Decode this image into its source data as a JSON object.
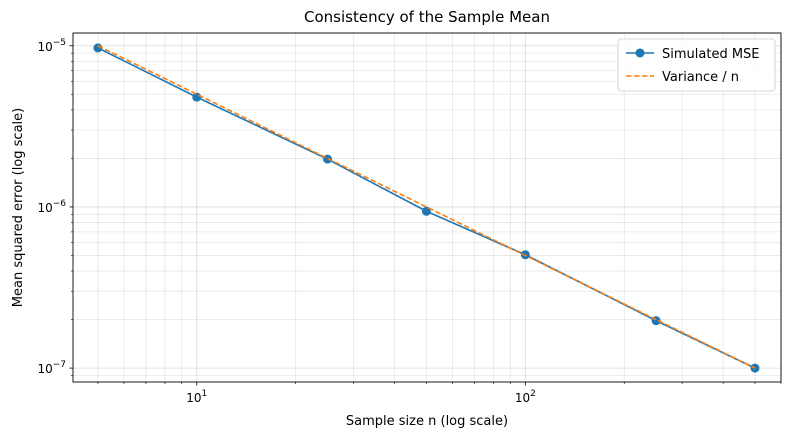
{
  "chart_data": {
    "type": "line",
    "title": "Consistency of the Sample Mean",
    "xlabel": "Sample size n (log scale)",
    "ylabel": "Mean squared error (log scale)",
    "xscale": "log",
    "yscale": "log",
    "xlim": [
      4.2,
      600
    ],
    "ylim": [
      8.2e-08,
      1.2e-05
    ],
    "x": [
      5,
      10,
      25,
      50,
      100,
      250,
      500
    ],
    "series": [
      {
        "name": "Simulated MSE",
        "style": "solid-with-markers",
        "color": "#1f77b4",
        "values": [
          9.7e-06,
          4.8e-06,
          1.98e-06,
          9.4e-07,
          5.05e-07,
          1.97e-07,
          1e-07
        ]
      },
      {
        "name": "Variance / n",
        "style": "dashed",
        "color": "#ff7f0e",
        "values": [
          1e-05,
          5e-06,
          2e-06,
          1e-06,
          5e-07,
          2e-07,
          1e-07
        ]
      }
    ],
    "xticks": [
      {
        "value": 10,
        "base": "10",
        "exp": "1"
      },
      {
        "value": 100,
        "base": "10",
        "exp": "2"
      }
    ],
    "yticks": [
      {
        "value": 1e-05,
        "base": "10",
        "exp": "−5"
      },
      {
        "value": 1e-06,
        "base": "10",
        "exp": "−6"
      },
      {
        "value": 1e-07,
        "base": "10",
        "exp": "−7"
      }
    ],
    "grid": true,
    "legend": "top-right"
  }
}
